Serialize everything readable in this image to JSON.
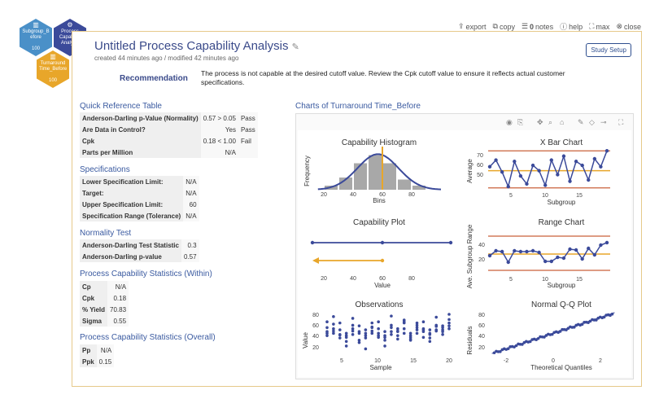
{
  "toolbar": {
    "export": "export",
    "copy": "copy",
    "notes_count": "0",
    "notes": "notes",
    "help": "help",
    "max": "max",
    "close": "close"
  },
  "nav": {
    "hex1": {
      "label": "Subgroup_B efore",
      "count": "100"
    },
    "hex2": {
      "label": "Process Capability Analysis",
      "count": ""
    },
    "hex3": {
      "label": "Turnaround Time_Before",
      "count": "100"
    }
  },
  "header": {
    "title": "Untitled Process Capability Analysis",
    "subtitle": "created 44 minutes ago / modified 42 minutes ago",
    "study_setup": "Study Setup"
  },
  "recommendation": {
    "label": "Recommendation",
    "text": "The process is not capable at the desired cutoff value. Review the Cpk cutoff value to ensure it reflects actual customer specifications."
  },
  "quick_reference": {
    "title": "Quick Reference Table",
    "rows": [
      {
        "k": "Anderson-Darling p-Value (Normality)",
        "v": "0.57 > 0.05",
        "r": "Pass"
      },
      {
        "k": "Are Data in Control?",
        "v": "Yes",
        "r": "Pass"
      },
      {
        "k": "Cpk",
        "v": "0.18 < 1.00",
        "r": "Fail"
      },
      {
        "k": "Parts per Million",
        "v": "N/A",
        "r": ""
      }
    ]
  },
  "specifications": {
    "title": "Specifications",
    "rows": [
      {
        "k": "Lower Specification Limit:",
        "v": "N/A"
      },
      {
        "k": "Target:",
        "v": "N/A"
      },
      {
        "k": "Upper Specification Limit:",
        "v": "60"
      },
      {
        "k": "Specification Range (Tolerance)",
        "v": "N/A"
      }
    ]
  },
  "normality": {
    "title": "Normality Test",
    "rows": [
      {
        "k": "Anderson-Darling Test Statistic",
        "v": "0.3"
      },
      {
        "k": "Anderson-Darling p-value",
        "v": "0.57"
      }
    ]
  },
  "within": {
    "title": "Process Capability Statistics (Within)",
    "rows": [
      {
        "k": "Cp",
        "v": "N/A"
      },
      {
        "k": "Cpk",
        "v": "0.18"
      },
      {
        "k": "% Yield",
        "v": "70.83"
      },
      {
        "k": "Sigma",
        "v": "0.55"
      }
    ]
  },
  "overall": {
    "title": "Process Capability Statistics (Overall)",
    "rows": [
      {
        "k": "Pp",
        "v": "N/A"
      },
      {
        "k": "Ppk",
        "v": "0.15"
      }
    ]
  },
  "charts": {
    "title": "Charts of Turnaround Time_Before",
    "histogram": {
      "title": "Capability Histogram",
      "xlabel": "Bins",
      "ylabel": "Frequency",
      "ticks": [
        "20",
        "40",
        "60",
        "80"
      ]
    },
    "xbar": {
      "title": "X Bar Chart",
      "xlabel": "Subgroup",
      "ylabel": "Average",
      "yticks": [
        "70",
        "60",
        "50"
      ],
      "xticks": [
        "5",
        "10",
        "15"
      ]
    },
    "capplot": {
      "title": "Capability Plot",
      "xlabel": "Value",
      "ticks": [
        "20",
        "40",
        "60",
        "80"
      ]
    },
    "range": {
      "title": "Range Chart",
      "xlabel": "Subgroup",
      "ylabel": "Ave. Subgroup Range",
      "yticks": [
        "40",
        "20"
      ],
      "xticks": [
        "5",
        "10",
        "15"
      ]
    },
    "observations": {
      "title": "Observations",
      "xlabel": "Sample",
      "ylabel": "Value",
      "yticks": [
        "80",
        "60",
        "40",
        "20"
      ],
      "xticks": [
        "5",
        "10",
        "15",
        "20"
      ]
    },
    "qq": {
      "title": "Normal Q-Q Plot",
      "xlabel": "Theoretical Quantiles",
      "ylabel": "Residuals",
      "yticks": [
        "80",
        "60",
        "40",
        "20"
      ],
      "xticks": [
        "-2",
        "0",
        "2"
      ]
    }
  },
  "chart_data": [
    {
      "type": "bar",
      "title": "Capability Histogram",
      "xlabel": "Bins",
      "ylabel": "Frequency",
      "categories": [
        "20-30",
        "30-40",
        "40-50",
        "50-60",
        "60-70",
        "70-80",
        "80-90"
      ],
      "values": [
        2,
        6,
        13,
        17,
        13,
        5,
        2
      ],
      "usl": 60
    },
    {
      "type": "line",
      "title": "X Bar Chart",
      "xlabel": "Subgroup",
      "ylabel": "Average",
      "x": [
        1,
        2,
        3,
        4,
        5,
        6,
        7,
        8,
        9,
        10,
        11,
        12,
        13,
        14,
        15,
        16,
        17,
        18,
        19,
        20
      ],
      "values": [
        58,
        63,
        54,
        43,
        62,
        51,
        45,
        59,
        55,
        44,
        63,
        52,
        66,
        47,
        62,
        59,
        48,
        64,
        58,
        70
      ],
      "center": 55,
      "ucl": 70,
      "lcl": 42
    },
    {
      "type": "line",
      "title": "Range Chart",
      "xlabel": "Subgroup",
      "ylabel": "Ave. Subgroup Range",
      "x": [
        1,
        2,
        3,
        4,
        5,
        6,
        7,
        8,
        9,
        10,
        11,
        12,
        13,
        14,
        15,
        16,
        17,
        18,
        19,
        20
      ],
      "values": [
        22,
        28,
        27,
        14,
        28,
        27,
        27,
        28,
        26,
        15,
        15,
        20,
        19,
        30,
        29,
        18,
        31,
        23,
        35,
        38
      ],
      "center": 24,
      "ucl": 46,
      "lcl": 4
    },
    {
      "type": "scatter",
      "title": "Observations",
      "xlabel": "Sample",
      "ylabel": "Value",
      "x": [
        1,
        1,
        1,
        1,
        1,
        2,
        2,
        2,
        2,
        2,
        3,
        3,
        3,
        3,
        3,
        4,
        4,
        4,
        4,
        4,
        5,
        5,
        5,
        5,
        5,
        6,
        6,
        6,
        6,
        6,
        7,
        7,
        7,
        7,
        7,
        8,
        8,
        8,
        8,
        8,
        9,
        9,
        9,
        9,
        9,
        10,
        10,
        10,
        10,
        10,
        11,
        11,
        11,
        11,
        11,
        12,
        12,
        12,
        12,
        12,
        13,
        13,
        13,
        13,
        13,
        14,
        14,
        14,
        14,
        14,
        15,
        15,
        15,
        15,
        15,
        16,
        16,
        16,
        16,
        16,
        17,
        17,
        17,
        17,
        17,
        18,
        18,
        18,
        18,
        18,
        19,
        19,
        19,
        19,
        19,
        20,
        20,
        20,
        20,
        20
      ],
      "values": [
        72,
        55,
        48,
        62,
        52,
        81,
        60,
        52,
        68,
        56,
        70,
        44,
        58,
        50,
        49,
        38,
        45,
        30,
        52,
        48,
        78,
        66,
        50,
        60,
        56,
        65,
        36,
        55,
        40,
        52,
        25,
        58,
        48,
        44,
        52,
        70,
        63,
        56,
        52,
        62,
        45,
        60,
        52,
        72,
        48,
        30,
        55,
        40,
        48,
        45,
        82,
        66,
        55,
        62,
        50,
        55,
        42,
        48,
        60,
        56,
        75,
        60,
        52,
        72,
        70,
        40,
        45,
        48,
        52,
        42,
        66,
        70,
        58,
        52,
        62,
        72,
        45,
        60,
        55,
        58,
        38,
        52,
        44,
        58,
        50,
        80,
        64,
        58,
        56,
        66,
        65,
        58,
        50,
        62,
        55,
        85,
        76,
        70,
        65,
        60
      ]
    },
    {
      "type": "scatter",
      "title": "Normal Q-Q Plot",
      "xlabel": "Theoretical Quantiles",
      "ylabel": "Residuals"
    }
  ]
}
